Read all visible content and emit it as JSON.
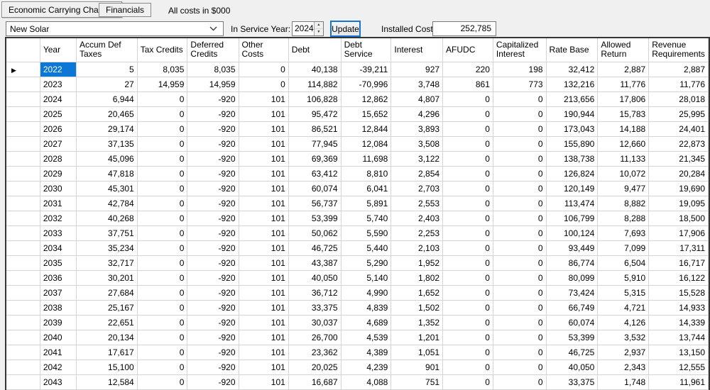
{
  "tabs": {
    "economic": "Economic Carrying Charges",
    "financials": "Financials"
  },
  "note": "All costs in $000",
  "toolbar": {
    "scenario": "New Solar",
    "in_service_year_label": "In Service Year:",
    "in_service_year": "2024",
    "update": "Update",
    "installed_cost_label": "Installed Cost:",
    "installed_cost": "252,785"
  },
  "icons": {
    "combo_chevron": "chevron-down-icon",
    "spin_up": "spin-up-icon",
    "spin_down": "spin-down-icon",
    "row_marker": "current-row-arrow-icon"
  },
  "colors": {
    "selection_blue": "#0c77d4",
    "button_focus_blue": "#1673d1",
    "gridline": "#d4d4d4",
    "grid_border": "#353535",
    "window_background": "#f0f0f0"
  },
  "table": {
    "columns": [
      "Year",
      "Accum Def Taxes",
      "Tax Credits",
      "Deferred Credits",
      "Other Costs",
      "Debt",
      "Debt Service",
      "Interest",
      "AFUDC",
      "Capitalized Interest",
      "Rate Base",
      "Allowed Return",
      "Revenue Requirements"
    ],
    "marker_row": 0,
    "selected_cell": {
      "row": 0,
      "col": 0
    },
    "rows": [
      [
        "2022",
        "5",
        "8,035",
        "8,035",
        "0",
        "40,138",
        "-39,211",
        "927",
        "220",
        "198",
        "32,412",
        "2,887",
        "2,887"
      ],
      [
        "2023",
        "27",
        "14,959",
        "14,959",
        "0",
        "114,882",
        "-70,996",
        "3,748",
        "861",
        "773",
        "132,216",
        "11,776",
        "11,776"
      ],
      [
        "2024",
        "6,944",
        "0",
        "-920",
        "101",
        "106,828",
        "12,862",
        "4,807",
        "0",
        "0",
        "213,656",
        "17,806",
        "28,018"
      ],
      [
        "2025",
        "20,465",
        "0",
        "-920",
        "101",
        "95,472",
        "15,652",
        "4,296",
        "0",
        "0",
        "190,944",
        "15,783",
        "25,995"
      ],
      [
        "2026",
        "29,174",
        "0",
        "-920",
        "101",
        "86,521",
        "12,844",
        "3,893",
        "0",
        "0",
        "173,043",
        "14,188",
        "24,401"
      ],
      [
        "2027",
        "37,135",
        "0",
        "-920",
        "101",
        "77,945",
        "12,084",
        "3,508",
        "0",
        "0",
        "155,890",
        "12,660",
        "22,873"
      ],
      [
        "2028",
        "45,096",
        "0",
        "-920",
        "101",
        "69,369",
        "11,698",
        "3,122",
        "0",
        "0",
        "138,738",
        "11,133",
        "21,345"
      ],
      [
        "2029",
        "47,818",
        "0",
        "-920",
        "101",
        "63,412",
        "8,810",
        "2,854",
        "0",
        "0",
        "126,824",
        "10,072",
        "20,284"
      ],
      [
        "2030",
        "45,301",
        "0",
        "-920",
        "101",
        "60,074",
        "6,041",
        "2,703",
        "0",
        "0",
        "120,149",
        "9,477",
        "19,690"
      ],
      [
        "2031",
        "42,784",
        "0",
        "-920",
        "101",
        "56,737",
        "5,891",
        "2,553",
        "0",
        "0",
        "113,474",
        "8,882",
        "19,095"
      ],
      [
        "2032",
        "40,268",
        "0",
        "-920",
        "101",
        "53,399",
        "5,740",
        "2,403",
        "0",
        "0",
        "106,799",
        "8,288",
        "18,500"
      ],
      [
        "2033",
        "37,751",
        "0",
        "-920",
        "101",
        "50,062",
        "5,590",
        "2,253",
        "0",
        "0",
        "100,124",
        "7,693",
        "17,906"
      ],
      [
        "2034",
        "35,234",
        "0",
        "-920",
        "101",
        "46,725",
        "5,440",
        "2,103",
        "0",
        "0",
        "93,449",
        "7,099",
        "17,311"
      ],
      [
        "2035",
        "32,717",
        "0",
        "-920",
        "101",
        "43,387",
        "5,290",
        "1,952",
        "0",
        "0",
        "86,774",
        "6,504",
        "16,717"
      ],
      [
        "2036",
        "30,201",
        "0",
        "-920",
        "101",
        "40,050",
        "5,140",
        "1,802",
        "0",
        "0",
        "80,099",
        "5,910",
        "16,122"
      ],
      [
        "2037",
        "27,684",
        "0",
        "-920",
        "101",
        "36,712",
        "4,990",
        "1,652",
        "0",
        "0",
        "73,424",
        "5,315",
        "15,528"
      ],
      [
        "2038",
        "25,167",
        "0",
        "-920",
        "101",
        "33,375",
        "4,839",
        "1,502",
        "0",
        "0",
        "66,749",
        "4,721",
        "14,933"
      ],
      [
        "2039",
        "22,651",
        "0",
        "-920",
        "101",
        "30,037",
        "4,689",
        "1,352",
        "0",
        "0",
        "60,074",
        "4,126",
        "14,339"
      ],
      [
        "2040",
        "20,134",
        "0",
        "-920",
        "101",
        "26,700",
        "4,539",
        "1,201",
        "0",
        "0",
        "53,399",
        "3,532",
        "13,744"
      ],
      [
        "2041",
        "17,617",
        "0",
        "-920",
        "101",
        "23,362",
        "4,389",
        "1,051",
        "0",
        "0",
        "46,725",
        "2,937",
        "13,150"
      ],
      [
        "2042",
        "15,100",
        "0",
        "-920",
        "101",
        "20,025",
        "4,239",
        "901",
        "0",
        "0",
        "40,050",
        "2,343",
        "12,555"
      ],
      [
        "2043",
        "12,584",
        "0",
        "-920",
        "101",
        "16,687",
        "4,088",
        "751",
        "0",
        "0",
        "33,375",
        "1,748",
        "11,961"
      ]
    ]
  }
}
